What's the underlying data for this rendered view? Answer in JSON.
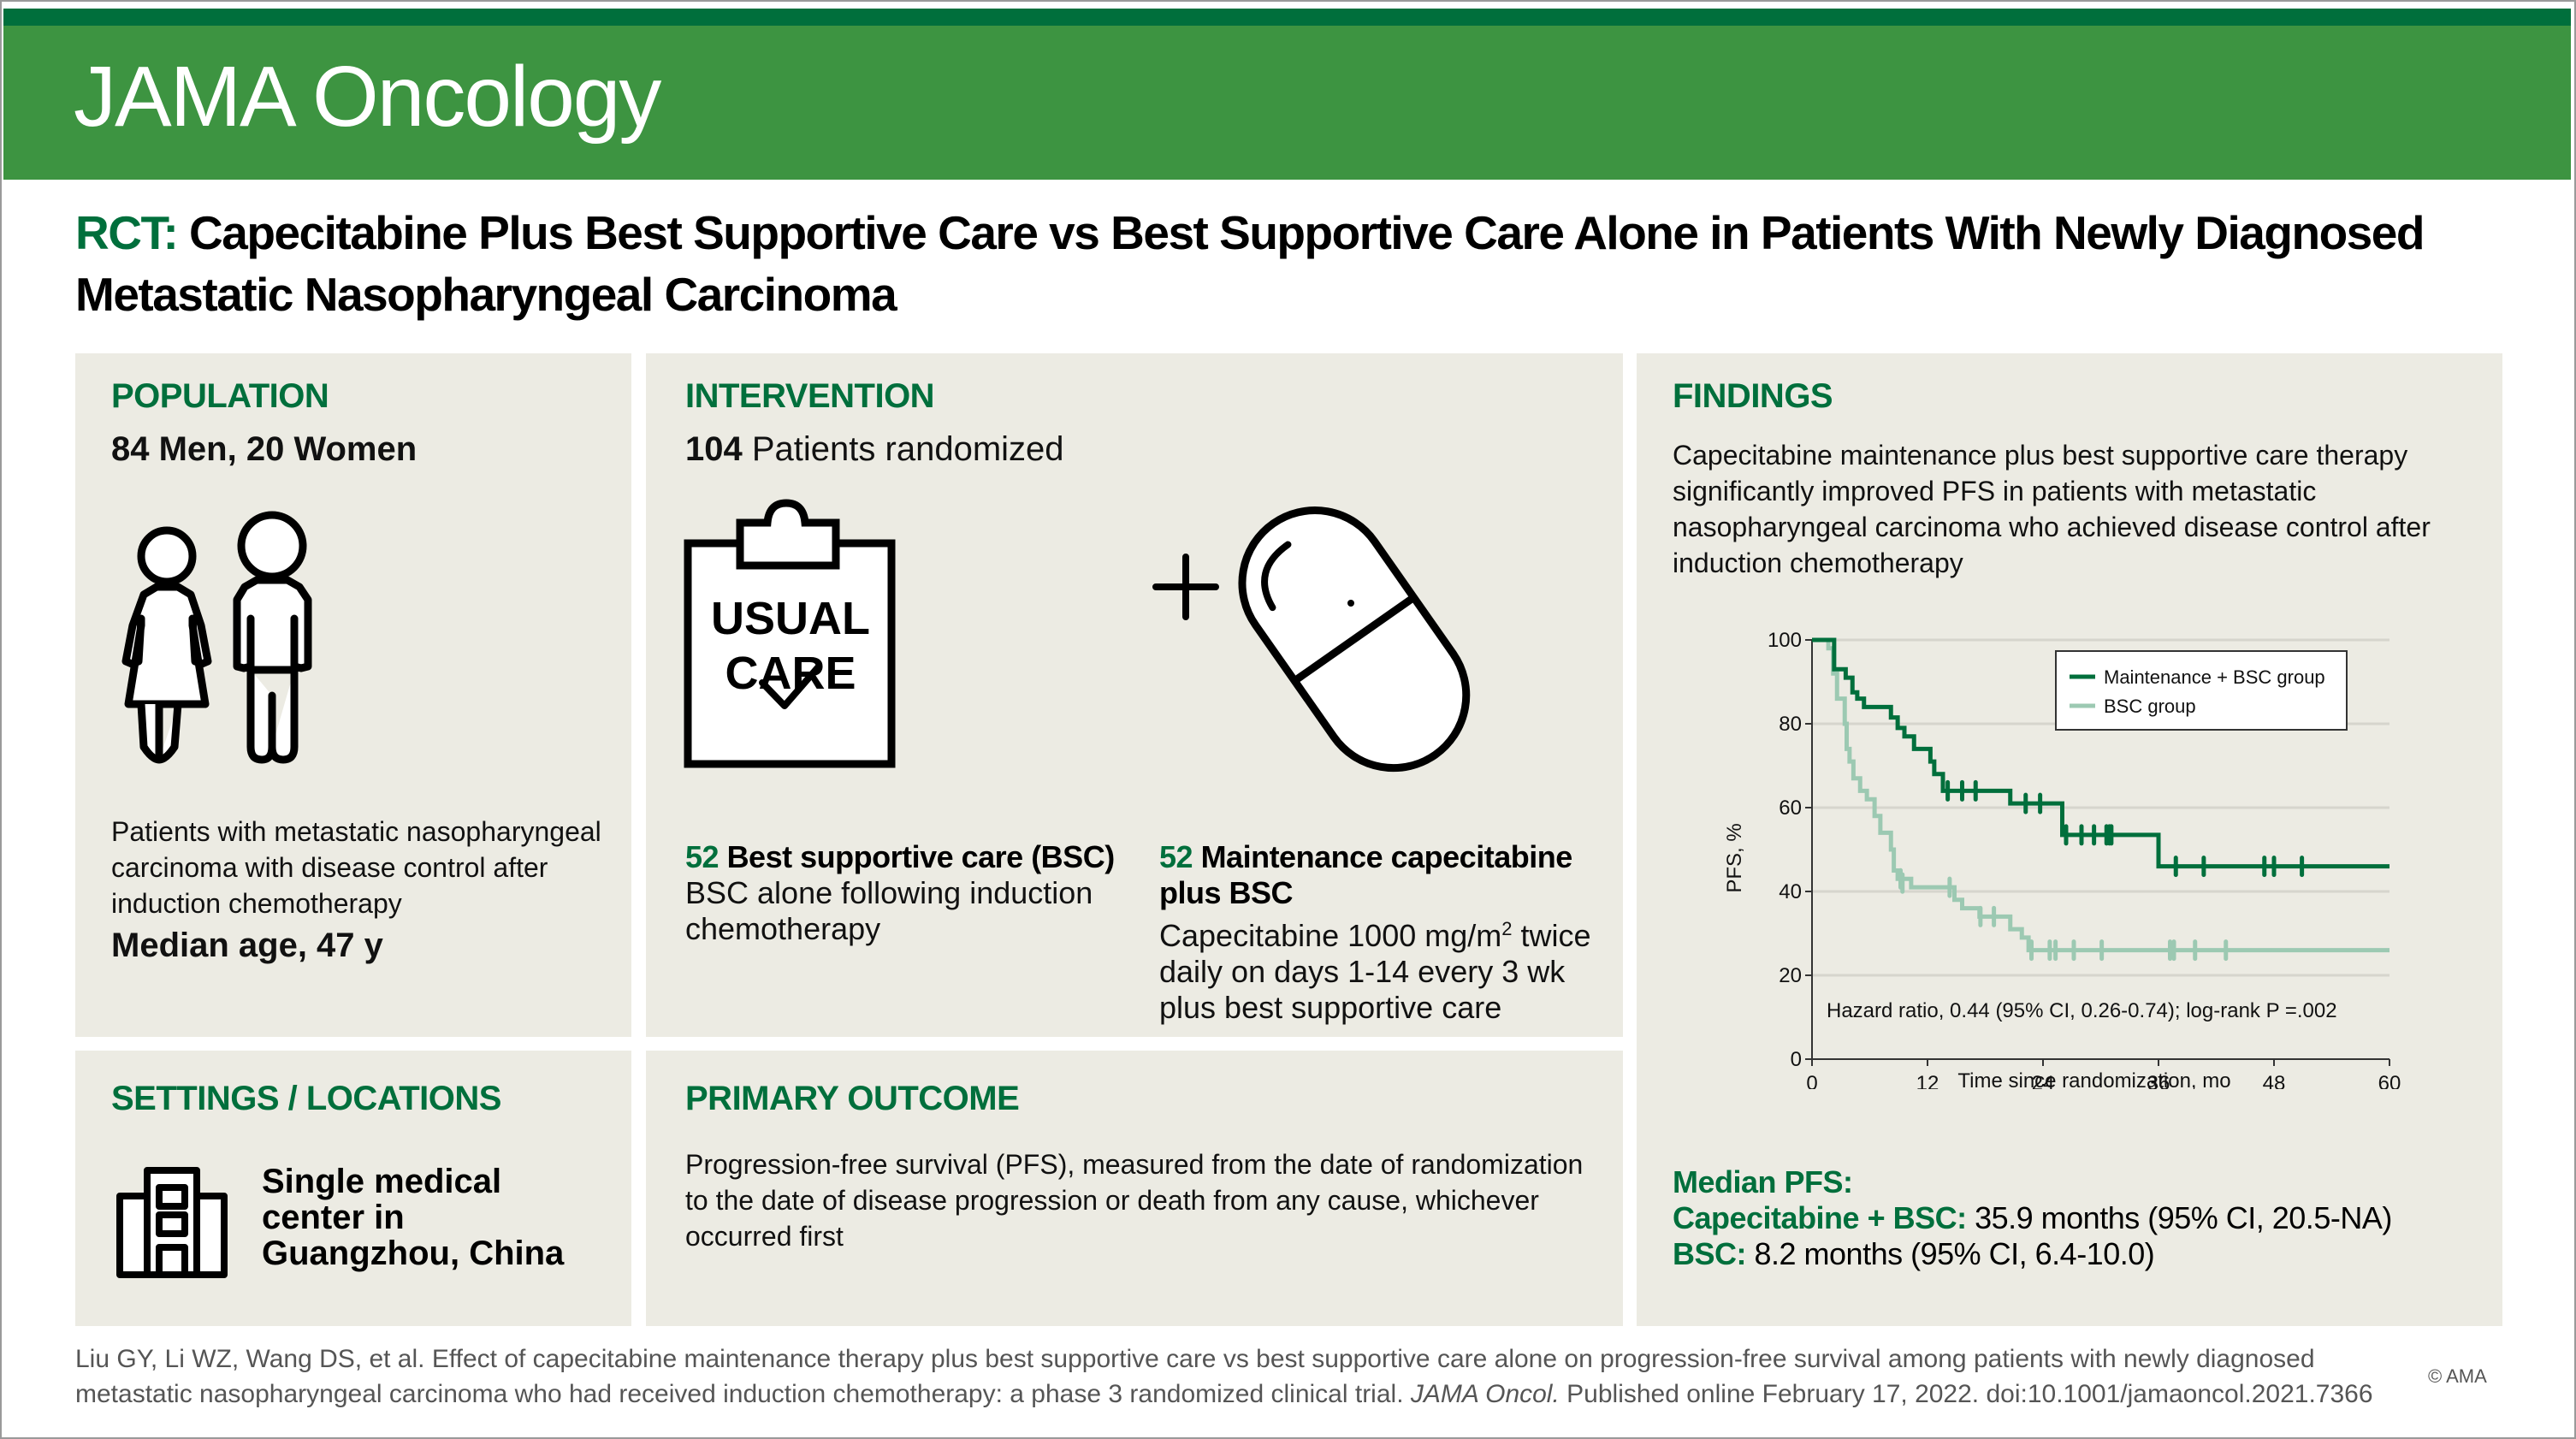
{
  "header": {
    "journal": "JAMA Oncology",
    "title_prefix": "RCT:",
    "title": "Capecitabine Plus Best Supportive Care vs Best Supportive Care Alone in Patients With Newly Diagnosed Metastatic Nasopharyngeal Carcinoma"
  },
  "colors": {
    "dark_green": "#006f3c",
    "header_green": "#3d9441",
    "panel_bg": "#ecebe3",
    "light_green_series": "#9cc9b2"
  },
  "population": {
    "heading": "POPULATION",
    "counts": "84 Men, 20 Women",
    "icon": "man-and-woman-icon",
    "description": "Patients with metastatic nasopharyngeal carcinoma with disease control after induction chemotherapy",
    "median_age": "Median age, 47 y"
  },
  "intervention": {
    "heading": "INTERVENTION",
    "randomized_number": "104",
    "randomized_label": "Patients randomized",
    "clipboard_line1": "USUAL",
    "clipboard_line2": "CARE",
    "arm1_n": "52",
    "arm1_title": "Best supportive care (BSC)",
    "arm1_desc": "BSC alone following induction chemotherapy",
    "arm2_n": "52",
    "arm2_title": "Maintenance capecitabine plus BSC",
    "arm2_desc_pre": "Capecitabine 1000 mg/m",
    "arm2_desc_sup": "2",
    "arm2_desc_post": " twice daily on days 1-14 every 3 wk plus best supportive care"
  },
  "settings": {
    "heading": "SETTINGS / LOCATIONS",
    "icon": "hospital-building-icon",
    "location": "Single medical center in Guangzhou, China"
  },
  "primary_outcome": {
    "heading": "PRIMARY OUTCOME",
    "text": "Progression-free survival (PFS), measured from the date of randomization to the date of disease progression or death from any cause, whichever occurred first"
  },
  "findings": {
    "heading": "FINDINGS",
    "text": "Capecitabine maintenance plus best supportive care therapy significantly improved PFS in patients with metastatic nasopharyngeal carcinoma who achieved disease control after induction chemotherapy",
    "median_heading": "Median PFS:",
    "median_1_label": "Capecitabine + BSC:",
    "median_1_value": " 35.9 months (95% CI, 20.5-NA)",
    "median_2_label": "BSC:",
    "median_2_value": " 8.2 months (95% CI, 6.4-10.0)"
  },
  "chart_data": {
    "type": "line",
    "subtype": "kaplan-meier step",
    "title": "",
    "xlabel": "Time since randomization, mo",
    "ylabel": "PFS, %",
    "xlim": [
      0,
      60
    ],
    "ylim": [
      0,
      100
    ],
    "xticks": [
      0,
      12,
      24,
      36,
      48,
      60
    ],
    "yticks": [
      0,
      20,
      40,
      60,
      80,
      100
    ],
    "grid": "horizontal",
    "legend_position": "top-right",
    "annotation": "Hazard ratio, 0.44 (95% CI, 0.26-0.74); log-rank P =.002",
    "series": [
      {
        "name": "Maintenance + BSC group",
        "color": "#006f3c",
        "steps": [
          [
            0,
            100
          ],
          [
            2.3,
            93
          ],
          [
            3.5,
            91
          ],
          [
            4.2,
            87.5
          ],
          [
            4.7,
            86
          ],
          [
            5.4,
            84
          ],
          [
            8.2,
            81.5
          ],
          [
            8.9,
            79
          ],
          [
            9.6,
            77
          ],
          [
            10.6,
            74
          ],
          [
            12.3,
            71
          ],
          [
            12.7,
            68
          ],
          [
            13.6,
            64
          ],
          [
            20.6,
            61
          ],
          [
            26.0,
            53.5
          ],
          [
            36.0,
            46
          ],
          [
            60,
            46
          ]
        ],
        "censored": [
          [
            14.1,
            64
          ],
          [
            15.6,
            64
          ],
          [
            17,
            64
          ],
          [
            22.2,
            61
          ],
          [
            23.7,
            61
          ],
          [
            26.4,
            53.5
          ],
          [
            28,
            53.5
          ],
          [
            29.3,
            53.5
          ],
          [
            30.6,
            53.5
          ],
          [
            30.9,
            53.5
          ],
          [
            31.1,
            53.5
          ],
          [
            37.8,
            46
          ],
          [
            40.7,
            46
          ],
          [
            47,
            46
          ],
          [
            48,
            46
          ],
          [
            50.9,
            46
          ]
        ]
      },
      {
        "name": "BSC group",
        "color": "#9cc9b2",
        "steps": [
          [
            0,
            100
          ],
          [
            1.7,
            98
          ],
          [
            2.2,
            92
          ],
          [
            2.6,
            86
          ],
          [
            3.4,
            80
          ],
          [
            3.6,
            74
          ],
          [
            3.9,
            71
          ],
          [
            4.3,
            67
          ],
          [
            5.0,
            64
          ],
          [
            5.7,
            62
          ],
          [
            6.5,
            58
          ],
          [
            7.1,
            54
          ],
          [
            8.2,
            50
          ],
          [
            8.5,
            45
          ],
          [
            8.9,
            43
          ],
          [
            10.3,
            41
          ],
          [
            14.8,
            38
          ],
          [
            15.6,
            36
          ],
          [
            17.4,
            34
          ],
          [
            20.6,
            31
          ],
          [
            21.8,
            29
          ],
          [
            22.5,
            26
          ],
          [
            60,
            26
          ]
        ],
        "censored": [
          [
            9.2,
            43
          ],
          [
            9.4,
            42
          ],
          [
            14.3,
            41
          ],
          [
            17.5,
            34
          ],
          [
            18.9,
            34
          ],
          [
            22.8,
            26
          ],
          [
            24.7,
            26
          ],
          [
            25.3,
            26
          ],
          [
            27.2,
            26
          ],
          [
            30.1,
            26
          ],
          [
            37.2,
            26
          ],
          [
            37.6,
            26
          ],
          [
            39.8,
            26
          ],
          [
            43.0,
            26
          ]
        ]
      }
    ]
  },
  "citation": {
    "text_pre": "Liu GY, Li WZ, Wang DS, et al. Effect of capecitabine maintenance therapy plus best supportive care vs best supportive care alone on progression-free survival among patients with newly diagnosed metastatic nasopharyngeal carcinoma who had received induction chemotherapy: a phase 3 randomized clinical trial. ",
    "journal_italic": "JAMA Oncol.",
    "text_post": " Published online February 17, 2022. doi:10.1001/jamaoncol.2021.7366",
    "copyright": "© AMA"
  }
}
